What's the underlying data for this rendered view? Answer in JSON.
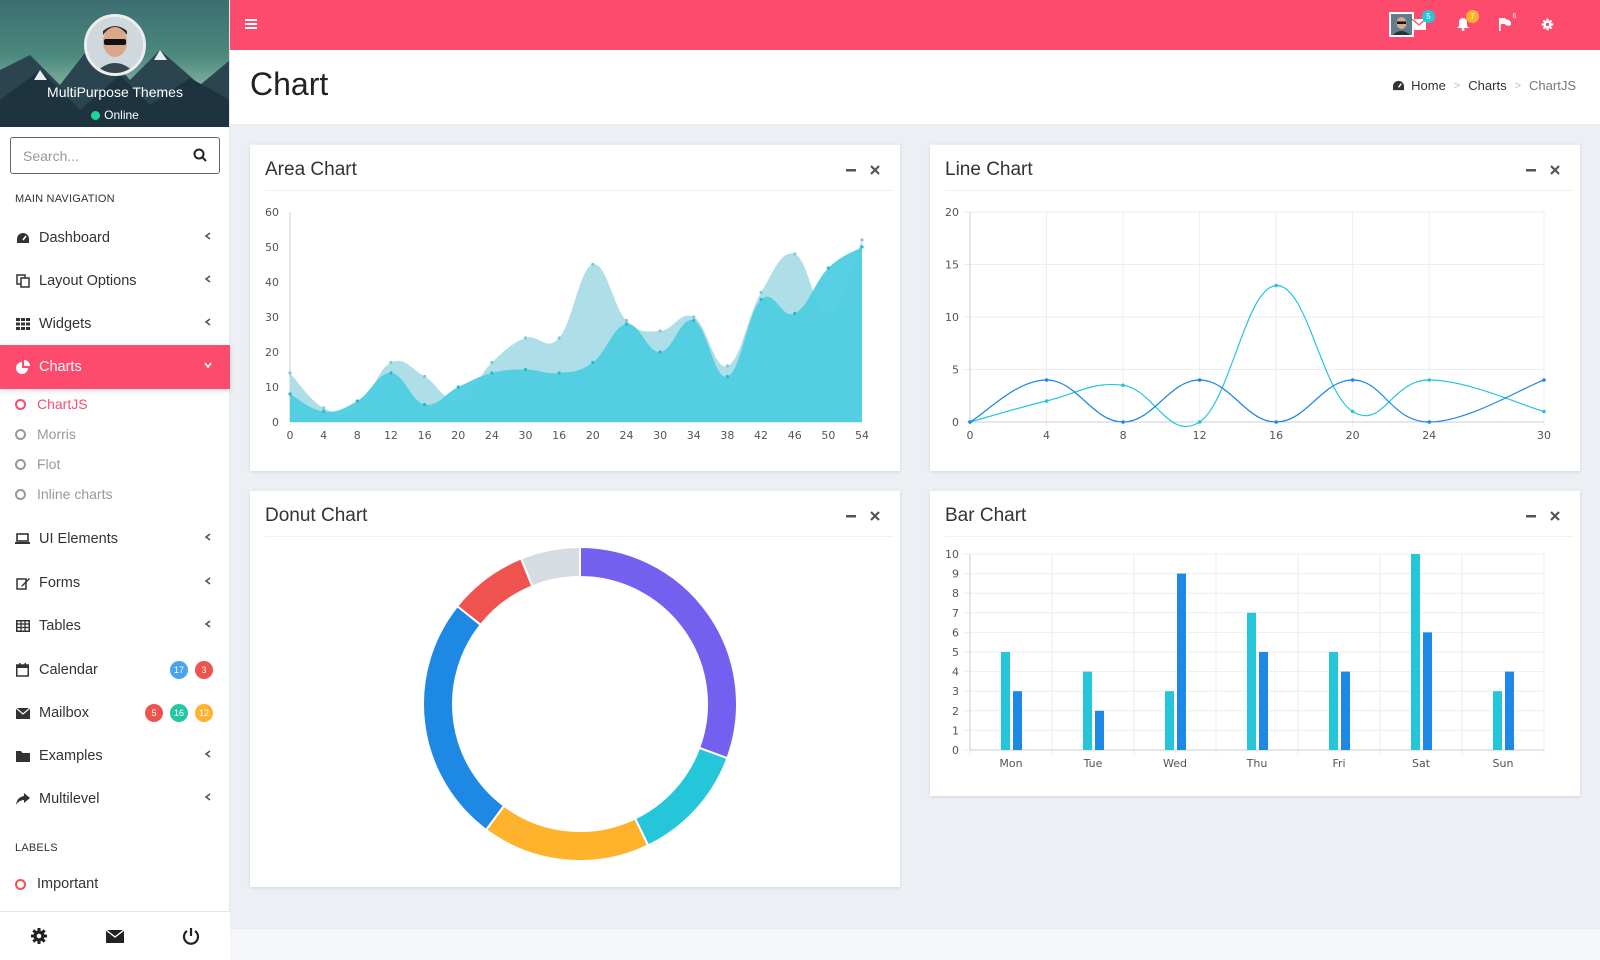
{
  "app": {
    "brand_user": "MultiPurpose Themes",
    "status": "Online"
  },
  "colors": {
    "accent": "#fc4b6c",
    "teal": "#26c6da",
    "blue": "#1e88e5",
    "purple": "#7460ee",
    "amber": "#ffb22b",
    "red": "#ef5350",
    "grey": "#d7dce2"
  },
  "search": {
    "placeholder": "Search..."
  },
  "sidebar": {
    "main_header": "MAIN NAVIGATION",
    "labels_header": "LABELS",
    "items": [
      {
        "label": "Dashboard",
        "icon": "dashboard-icon"
      },
      {
        "label": "Layout Options",
        "icon": "copy-icon"
      },
      {
        "label": "Widgets",
        "icon": "grid-icon"
      },
      {
        "label": "Charts",
        "icon": "pie-chart-icon",
        "active": true
      },
      {
        "label": "UI Elements",
        "icon": "laptop-icon"
      },
      {
        "label": "Forms",
        "icon": "edit-icon"
      },
      {
        "label": "Tables",
        "icon": "table-icon"
      },
      {
        "label": "Calendar",
        "icon": "calendar-icon",
        "badges": [
          "17",
          "3"
        ]
      },
      {
        "label": "Mailbox",
        "icon": "envelope-icon",
        "badges": [
          "5",
          "16",
          "12"
        ]
      },
      {
        "label": "Examples",
        "icon": "folder-icon"
      },
      {
        "label": "Multilevel",
        "icon": "share-icon"
      }
    ],
    "sub_items": [
      "ChartJS",
      "Morris",
      "Flot",
      "Inline charts"
    ],
    "labels": [
      "Important"
    ]
  },
  "topbar": {
    "badges": {
      "mail": "5",
      "notifications": "7",
      "flags": "6"
    }
  },
  "page": {
    "title": "Chart"
  },
  "breadcrumb": {
    "home": "Home",
    "section": "Charts",
    "current": "ChartJS"
  },
  "boxes": {
    "area": {
      "title": "Area Chart"
    },
    "line": {
      "title": "Line Chart"
    },
    "donut": {
      "title": "Donut Chart"
    },
    "bar": {
      "title": "Bar Chart"
    }
  },
  "chart_data": [
    {
      "type": "area",
      "title": "Area Chart",
      "x": [
        "0",
        "4",
        "8",
        "12",
        "16",
        "20",
        "24",
        "30",
        "16",
        "20",
        "24",
        "30",
        "34",
        "38",
        "42",
        "46",
        "50",
        "54"
      ],
      "ylim": [
        0,
        60
      ],
      "yticks": [
        0,
        10,
        20,
        30,
        40,
        50,
        60
      ],
      "grid": false,
      "series": [
        {
          "color": "#a5dbe5",
          "values": [
            14,
            4,
            4,
            17,
            13,
            6,
            17,
            24,
            24,
            45,
            29,
            26,
            30,
            16,
            37,
            48,
            31,
            52
          ]
        },
        {
          "color": "#4fcee1",
          "values": [
            8,
            3,
            6,
            14,
            5,
            10,
            14,
            15,
            14,
            17,
            28,
            20,
            29,
            13,
            35,
            31,
            44,
            50
          ]
        }
      ]
    },
    {
      "type": "line",
      "title": "Line Chart",
      "x": [
        0,
        4,
        8,
        12,
        16,
        20,
        24,
        30
      ],
      "ylim": [
        0,
        20
      ],
      "yticks": [
        0,
        5,
        10,
        15,
        20
      ],
      "grid": true,
      "series": [
        {
          "color": "#26c6da",
          "values": [
            0,
            2,
            3.5,
            0,
            13,
            1,
            4,
            1
          ]
        },
        {
          "color": "#1e88e5",
          "values": [
            0,
            4,
            0,
            4,
            0,
            4,
            0,
            4
          ]
        }
      ]
    },
    {
      "type": "pie",
      "title": "Donut Chart",
      "values": [
        30,
        12,
        17,
        25,
        8,
        6
      ],
      "colors": [
        "#7460ee",
        "#26c6da",
        "#ffb22b",
        "#1e88e5",
        "#ef5350",
        "#d7dce2"
      ]
    },
    {
      "type": "bar",
      "title": "Bar Chart",
      "categories": [
        "Mon",
        "Tue",
        "Wed",
        "Thu",
        "Fri",
        "Sat",
        "Sun"
      ],
      "ylim": [
        0,
        10
      ],
      "yticks": [
        0,
        1,
        2,
        3,
        4,
        5,
        6,
        7,
        8,
        9,
        10
      ],
      "grid": true,
      "series": [
        {
          "color": "#26c6da",
          "values": [
            5,
            4,
            3,
            7,
            5,
            10,
            3
          ]
        },
        {
          "color": "#1e88e5",
          "values": [
            3,
            2,
            9,
            5,
            4,
            6,
            4
          ]
        }
      ]
    }
  ]
}
